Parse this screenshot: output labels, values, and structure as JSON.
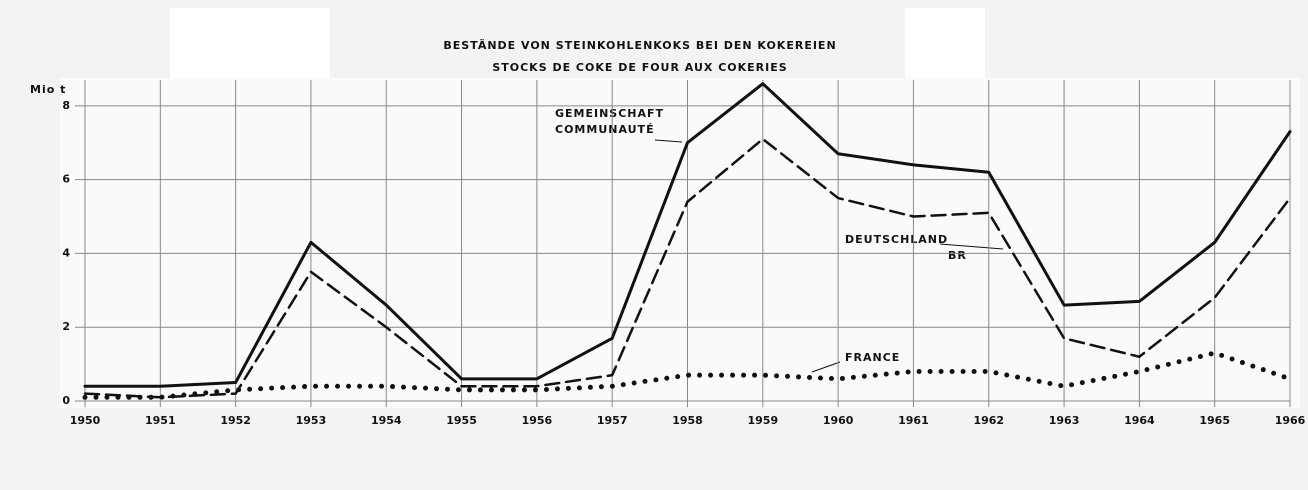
{
  "chart_data": {
    "type": "line",
    "title": [
      "BESTÄNDE VON STEINKOHLENKOKS BEI DEN KOKEREIEN",
      "STOCKS DE COKE DE FOUR AUX COKERIES"
    ],
    "y_label": "Mio t",
    "x": [
      1950,
      1951,
      1952,
      1953,
      1954,
      1955,
      1956,
      1957,
      1958,
      1959,
      1960,
      1961,
      1962,
      1963,
      1964,
      1965,
      1966
    ],
    "xlim": [
      1950,
      1966
    ],
    "xticks": [
      1950,
      1951,
      1952,
      1953,
      1954,
      1955,
      1956,
      1957,
      1958,
      1959,
      1960,
      1961,
      1962,
      1963,
      1964,
      1965,
      1966
    ],
    "ylim": [
      0,
      8.7
    ],
    "yticks": [
      0,
      2,
      4,
      6,
      8
    ],
    "grid": true,
    "series": [
      {
        "name": [
          "GEMEINSCHAFT",
          "COMMUNAUTÉ"
        ],
        "color": "#111111",
        "style": "solid",
        "values": [
          0.4,
          0.4,
          0.5,
          4.3,
          2.6,
          0.6,
          0.6,
          1.7,
          7.0,
          8.6,
          6.7,
          6.4,
          6.2,
          2.6,
          2.7,
          4.3,
          7.3
        ]
      },
      {
        "name": [
          "DEUTSCHLAND",
          "BR"
        ],
        "color": "#111111",
        "style": "dashed",
        "values": [
          0.2,
          0.1,
          0.2,
          3.5,
          2.0,
          0.4,
          0.4,
          0.7,
          5.4,
          7.1,
          5.5,
          5.0,
          5.1,
          1.7,
          1.2,
          2.8,
          5.5
        ]
      },
      {
        "name": [
          "FRANCE"
        ],
        "color": "#111111",
        "style": "dotted",
        "values": [
          0.1,
          0.1,
          0.3,
          0.4,
          0.4,
          0.3,
          0.3,
          0.4,
          0.7,
          0.7,
          0.6,
          0.8,
          0.8,
          0.4,
          0.8,
          1.3,
          0.6
        ]
      }
    ]
  }
}
